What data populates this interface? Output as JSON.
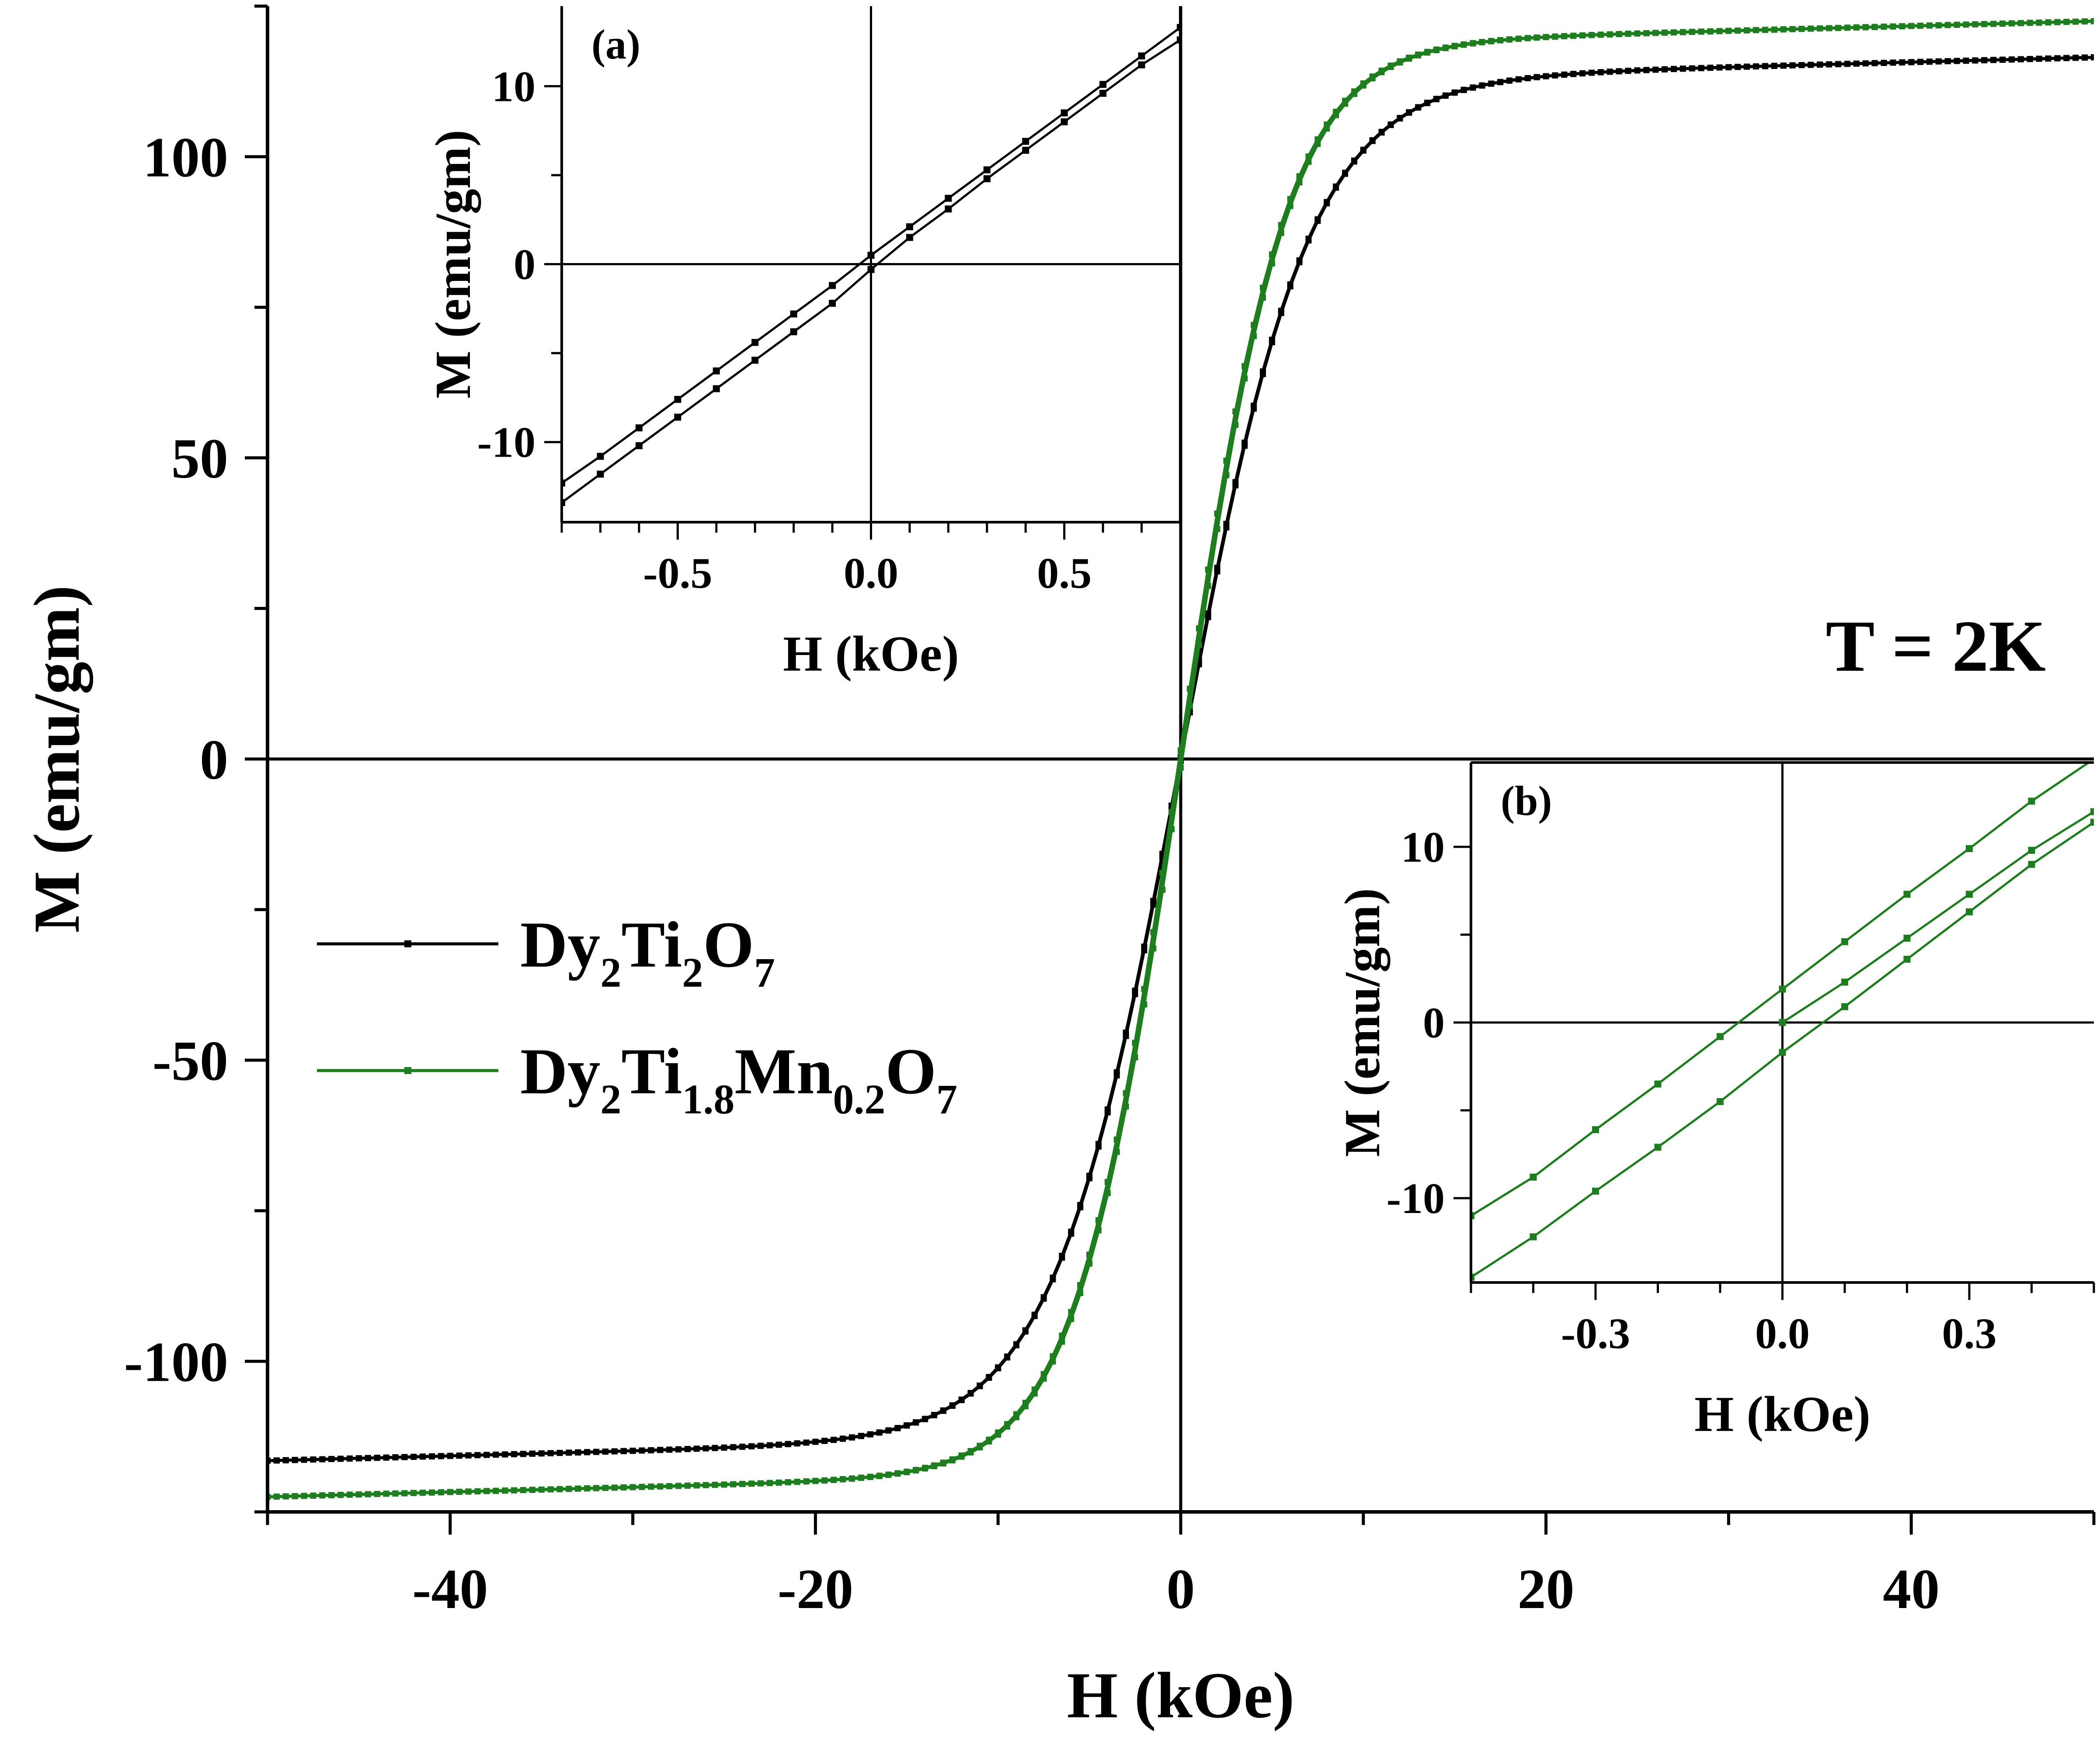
{
  "chart_data": [
    {
      "type": "line",
      "xlabel": "H (kOe)",
      "ylabel": "M (emu/gm)",
      "xlim": [
        -50,
        50
      ],
      "ylim": [
        -125,
        125
      ],
      "xticks": [
        -40,
        -20,
        0,
        20,
        40
      ],
      "yticks": [
        -100,
        -50,
        0,
        50,
        100
      ],
      "annotation": "T = 2K",
      "grid": false,
      "legend_position": "left",
      "series": [
        {
          "name": "Dy2Ti2O7",
          "name_parts": [
            [
              "Dy",
              false
            ],
            [
              "2",
              true
            ],
            [
              "Ti",
              false
            ],
            [
              "2",
              true
            ],
            [
              "O",
              false
            ],
            [
              "7",
              true
            ]
          ],
          "color": "#000000",
          "Ms": 112.5,
          "H0": 7.0,
          "chi_hf": 0.08,
          "coercivity_kOe": 0.02,
          "x": [
            -50,
            -40,
            -30,
            -20,
            -15,
            -10,
            -7,
            -5,
            -3,
            -2,
            -1,
            0,
            1,
            2,
            3,
            5,
            7,
            10,
            15,
            20,
            30,
            40,
            50
          ],
          "y": [
            -112.5,
            -111.4,
            -110.1,
            -106.8,
            -101.8,
            -92.4,
            -80.8,
            -66.3,
            -45.1,
            -31.4,
            -16.5,
            0,
            16.5,
            31.4,
            45.1,
            66.3,
            80.8,
            92.4,
            101.8,
            106.8,
            110.1,
            111.4,
            112.5
          ]
        },
        {
          "name": "Dy2Ti1.8Mn0.2O7",
          "name_parts": [
            [
              "Dy",
              false
            ],
            [
              "2",
              true
            ],
            [
              "Ti",
              false
            ],
            [
              "1.8",
              true
            ],
            [
              "Mn",
              false
            ],
            [
              "0.2",
              true
            ],
            [
              "O",
              false
            ],
            [
              "7",
              true
            ]
          ],
          "color": "#1e7d1e",
          "Ms": 118.5,
          "H0": 5.8,
          "chi_hf": 0.08,
          "coercivity_kOe": 0.07,
          "x": [
            -50,
            -40,
            -30,
            -20,
            -15,
            -10,
            -7,
            -5,
            -3,
            -2,
            -1,
            0,
            1,
            2,
            3,
            5,
            7,
            10,
            15,
            20,
            30,
            40,
            50
          ],
          "y": [
            -118.5,
            -117.4,
            -115.9,
            -112.3,
            -107.6,
            -98.3,
            -86.3,
            -71.0,
            -48.4,
            -33.9,
            -17.7,
            0,
            17.7,
            33.9,
            48.4,
            71.0,
            86.3,
            98.3,
            107.6,
            112.3,
            115.9,
            117.4,
            118.5
          ]
        }
      ]
    },
    {
      "type": "line",
      "panel_label": "(a)",
      "xlabel": "H (kOe)",
      "ylabel": "M (emu/gm)",
      "xlim": [
        -0.8,
        0.8
      ],
      "ylim": [
        -14.5,
        14.5
      ],
      "xticks": [
        -0.5,
        0.0,
        0.5
      ],
      "xtick_labels": [
        "-0.5",
        "0.0",
        "0.5"
      ],
      "yticks": [
        -10,
        0,
        10
      ],
      "series": [
        {
          "name": "Dy2Ti2O7 branch 1",
          "color": "#000000",
          "x": [
            -0.8,
            -0.7,
            -0.6,
            -0.5,
            -0.4,
            -0.3,
            -0.2,
            -0.1,
            0.0,
            0.1,
            0.2,
            0.3,
            0.4,
            0.5,
            0.6,
            0.7,
            0.8
          ],
          "y": [
            -12.3,
            -10.8,
            -9.2,
            -7.6,
            -6.0,
            -4.4,
            -2.8,
            -1.2,
            0.5,
            2.1,
            3.7,
            5.3,
            6.9,
            8.5,
            10.1,
            11.7,
            13.3
          ]
        },
        {
          "name": "Dy2Ti2O7 branch 2",
          "color": "#000000",
          "x": [
            -0.8,
            -0.7,
            -0.6,
            -0.5,
            -0.4,
            -0.3,
            -0.2,
            -0.1,
            0.0,
            0.1,
            0.2,
            0.3,
            0.4,
            0.5,
            0.6,
            0.7,
            0.8
          ],
          "y": [
            -13.4,
            -11.8,
            -10.2,
            -8.6,
            -7.0,
            -5.4,
            -3.8,
            -2.2,
            -0.3,
            1.5,
            3.1,
            4.8,
            6.4,
            8.0,
            9.6,
            11.2,
            12.6
          ]
        }
      ]
    },
    {
      "type": "line",
      "panel_label": "(b)",
      "xlabel": "H (kOe)",
      "ylabel": "M (emu/gm)",
      "xlim": [
        -0.5,
        0.5
      ],
      "ylim": [
        -14.8,
        14.8
      ],
      "xticks": [
        -0.3,
        0.0,
        0.3
      ],
      "xtick_labels": [
        "-0.3",
        "0.0",
        "0.3"
      ],
      "yticks": [
        -10,
        0,
        10
      ],
      "series": [
        {
          "name": "Dy2Ti1.8Mn0.2O7 branch 1",
          "color": "#1e7d1e",
          "x": [
            -0.5,
            -0.4,
            -0.3,
            -0.2,
            -0.1,
            0.0,
            0.1,
            0.2,
            0.3,
            0.4,
            0.5
          ],
          "y": [
            -11.0,
            -8.8,
            -6.1,
            -3.5,
            -0.8,
            1.9,
            4.6,
            7.3,
            9.9,
            12.6,
            15.0
          ]
        },
        {
          "name": "Dy2Ti1.8Mn0.2O7 branch 2",
          "color": "#1e7d1e",
          "x": [
            -0.5,
            -0.4,
            -0.3,
            -0.2,
            -0.1,
            0.0,
            0.1,
            0.2,
            0.3,
            0.4,
            0.5
          ],
          "y": [
            -14.5,
            -12.2,
            -9.6,
            -7.1,
            -4.5,
            -1.7,
            0.9,
            3.6,
            6.3,
            9.0,
            11.4
          ]
        },
        {
          "name": "Dy2Ti1.8Mn0.2O7 branch 3",
          "color": "#1e7d1e",
          "x": [
            0.0,
            0.1,
            0.2,
            0.3,
            0.4,
            0.5
          ],
          "y": [
            0.0,
            2.3,
            4.8,
            7.3,
            9.8,
            12.0
          ]
        }
      ]
    }
  ]
}
